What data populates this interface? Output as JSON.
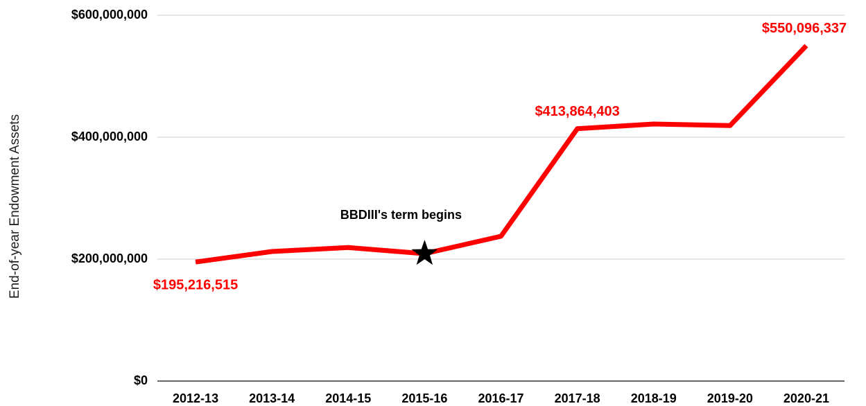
{
  "chart_data": {
    "type": "line",
    "y_label": "End-of-year Endowment Assets",
    "categories": [
      "2012-13",
      "2013-14",
      "2014-15",
      "2015-16",
      "2016-17",
      "2017-18",
      "2018-19",
      "2019-20",
      "2020-21"
    ],
    "series": [
      {
        "name": "End-of-year Endowment Assets",
        "color": "#ff0000",
        "values": [
          195216515,
          212500000,
          219000000,
          209000000,
          237500000,
          413864403,
          421600000,
          419000000,
          550096337
        ],
        "value_labels": [
          "$195,216,515",
          null,
          null,
          null,
          null,
          "$413,864,403",
          null,
          null,
          "$550,096,337"
        ]
      }
    ],
    "ylim": [
      0,
      600000000
    ],
    "yticks": [
      {
        "value": 0,
        "label": "$0"
      },
      {
        "value": 200000000,
        "label": "$200,000,000"
      },
      {
        "value": 400000000,
        "label": "$400,000,000"
      },
      {
        "value": 600000000,
        "label": "$600,000,000"
      }
    ],
    "grid": true,
    "annotation": {
      "text": "BBDIII's term begins",
      "category": "2015-16"
    }
  }
}
